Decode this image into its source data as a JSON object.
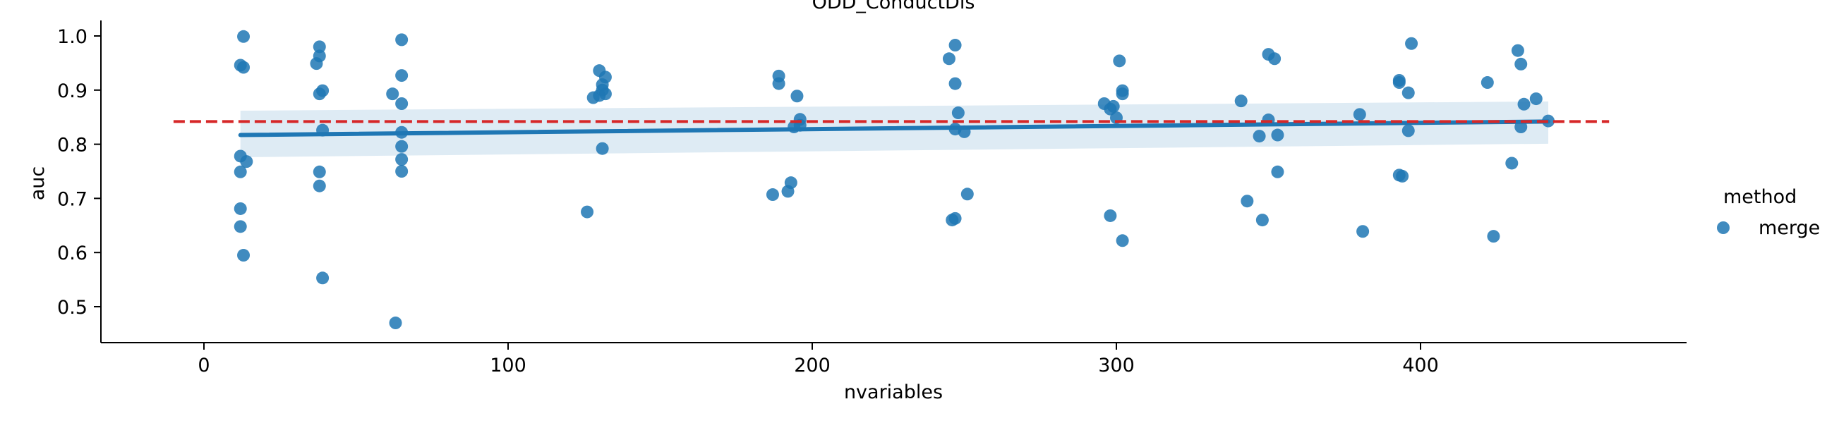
{
  "chart_data": {
    "type": "scatter",
    "title": "ODD_ConductDis",
    "xlabel": "nvariables",
    "ylabel": "auc",
    "xlim": [
      -33,
      488
    ],
    "ylim": [
      0.445,
      1.03
    ],
    "x_ticks": [
      0,
      100,
      200,
      300,
      400
    ],
    "y_ticks": [
      0.5,
      0.6,
      0.7,
      0.8,
      0.9,
      1.0
    ],
    "x_tick_labels": [
      "0",
      "100",
      "200",
      "300",
      "400"
    ],
    "y_tick_labels": [
      "0.5",
      "0.6",
      "0.7",
      "0.8",
      "0.9",
      "1.0"
    ],
    "grid": false,
    "legend": {
      "title": "method",
      "entries": [
        {
          "label": "merge",
          "color": "#1f77b4"
        }
      ],
      "placement": "right"
    },
    "series": [
      {
        "name": "merge",
        "color": "#1f77b4",
        "points": [
          {
            "x": 13,
            "y": 0.999
          },
          {
            "x": 12,
            "y": 0.946
          },
          {
            "x": 13,
            "y": 0.942
          },
          {
            "x": 12,
            "y": 0.778
          },
          {
            "x": 14,
            "y": 0.768
          },
          {
            "x": 12,
            "y": 0.749
          },
          {
            "x": 12,
            "y": 0.681
          },
          {
            "x": 12,
            "y": 0.648
          },
          {
            "x": 13,
            "y": 0.595
          },
          {
            "x": 38,
            "y": 0.98
          },
          {
            "x": 38,
            "y": 0.963
          },
          {
            "x": 37,
            "y": 0.949
          },
          {
            "x": 39,
            "y": 0.899
          },
          {
            "x": 38,
            "y": 0.893
          },
          {
            "x": 39,
            "y": 0.826
          },
          {
            "x": 38,
            "y": 0.749
          },
          {
            "x": 38,
            "y": 0.723
          },
          {
            "x": 39,
            "y": 0.553
          },
          {
            "x": 65,
            "y": 0.993
          },
          {
            "x": 65,
            "y": 0.927
          },
          {
            "x": 62,
            "y": 0.893
          },
          {
            "x": 65,
            "y": 0.875
          },
          {
            "x": 65,
            "y": 0.822
          },
          {
            "x": 65,
            "y": 0.796
          },
          {
            "x": 65,
            "y": 0.772
          },
          {
            "x": 65,
            "y": 0.75
          },
          {
            "x": 63,
            "y": 0.47
          },
          {
            "x": 130,
            "y": 0.936
          },
          {
            "x": 132,
            "y": 0.924
          },
          {
            "x": 131,
            "y": 0.91
          },
          {
            "x": 131,
            "y": 0.9
          },
          {
            "x": 132,
            "y": 0.893
          },
          {
            "x": 130,
            "y": 0.89
          },
          {
            "x": 128,
            "y": 0.886
          },
          {
            "x": 131,
            "y": 0.792
          },
          {
            "x": 126,
            "y": 0.675
          },
          {
            "x": 189,
            "y": 0.926
          },
          {
            "x": 189,
            "y": 0.912
          },
          {
            "x": 195,
            "y": 0.889
          },
          {
            "x": 196,
            "y": 0.846
          },
          {
            "x": 196,
            "y": 0.835
          },
          {
            "x": 194,
            "y": 0.832
          },
          {
            "x": 193,
            "y": 0.729
          },
          {
            "x": 192,
            "y": 0.713
          },
          {
            "x": 187,
            "y": 0.707
          },
          {
            "x": 247,
            "y": 0.983
          },
          {
            "x": 245,
            "y": 0.958
          },
          {
            "x": 247,
            "y": 0.912
          },
          {
            "x": 248,
            "y": 0.858
          },
          {
            "x": 247,
            "y": 0.828
          },
          {
            "x": 250,
            "y": 0.823
          },
          {
            "x": 251,
            "y": 0.708
          },
          {
            "x": 247,
            "y": 0.663
          },
          {
            "x": 246,
            "y": 0.66
          },
          {
            "x": 301,
            "y": 0.954
          },
          {
            "x": 302,
            "y": 0.899
          },
          {
            "x": 302,
            "y": 0.893
          },
          {
            "x": 296,
            "y": 0.875
          },
          {
            "x": 298,
            "y": 0.865
          },
          {
            "x": 299,
            "y": 0.87
          },
          {
            "x": 300,
            "y": 0.849
          },
          {
            "x": 298,
            "y": 0.668
          },
          {
            "x": 302,
            "y": 0.622
          },
          {
            "x": 350,
            "y": 0.966
          },
          {
            "x": 352,
            "y": 0.958
          },
          {
            "x": 341,
            "y": 0.88
          },
          {
            "x": 350,
            "y": 0.845
          },
          {
            "x": 347,
            "y": 0.815
          },
          {
            "x": 353,
            "y": 0.817
          },
          {
            "x": 353,
            "y": 0.749
          },
          {
            "x": 343,
            "y": 0.695
          },
          {
            "x": 348,
            "y": 0.66
          },
          {
            "x": 397,
            "y": 0.986
          },
          {
            "x": 393,
            "y": 0.918
          },
          {
            "x": 393,
            "y": 0.914
          },
          {
            "x": 396,
            "y": 0.895
          },
          {
            "x": 380,
            "y": 0.855
          },
          {
            "x": 396,
            "y": 0.825
          },
          {
            "x": 393,
            "y": 0.743
          },
          {
            "x": 394,
            "y": 0.741
          },
          {
            "x": 381,
            "y": 0.639
          },
          {
            "x": 432,
            "y": 0.973
          },
          {
            "x": 433,
            "y": 0.948
          },
          {
            "x": 422,
            "y": 0.914
          },
          {
            "x": 438,
            "y": 0.884
          },
          {
            "x": 434,
            "y": 0.874
          },
          {
            "x": 442,
            "y": 0.843
          },
          {
            "x": 433,
            "y": 0.832
          },
          {
            "x": 430,
            "y": 0.765
          },
          {
            "x": 424,
            "y": 0.63
          }
        ]
      }
    ],
    "regression_line": {
      "x": [
        12,
        442
      ],
      "y": [
        0.817,
        0.842
      ],
      "ci_lower": [
        0.776,
        0.801
      ],
      "ci_upper": [
        0.862,
        0.879
      ],
      "color": "#1f77b4"
    },
    "reference_line": {
      "y": 0.842,
      "x_range": [
        -10,
        462
      ],
      "color": "#d62728",
      "style": "dashed"
    }
  }
}
